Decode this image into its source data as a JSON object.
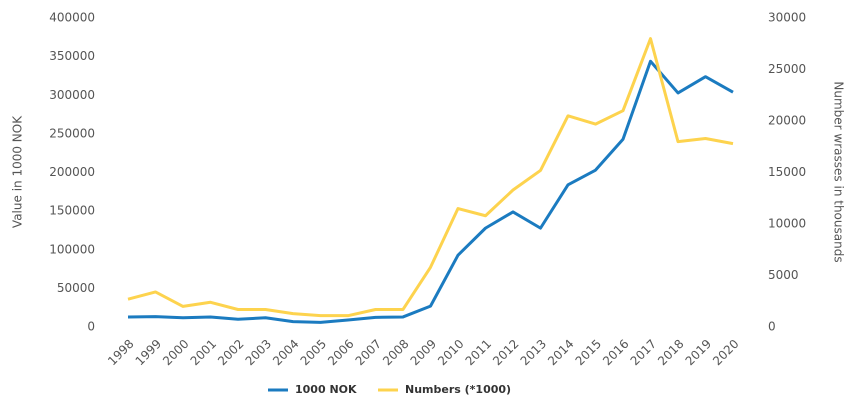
{
  "chart_data": {
    "type": "line",
    "x": [
      "1998",
      "1999",
      "2000",
      "2001",
      "2002",
      "2003",
      "2004",
      "2005",
      "2006",
      "2007",
      "2008",
      "2009",
      "2010",
      "2011",
      "2012",
      "2013",
      "2014",
      "2015",
      "2016",
      "2017",
      "2018",
      "2019",
      "2020"
    ],
    "series": [
      {
        "name": "1000 NOK",
        "color": "#1b7bc0",
        "values": [
          13000,
          13500,
          12000,
          13000,
          10000,
          12000,
          7000,
          6000,
          9000,
          12500,
          13000,
          27000,
          93000,
          128000,
          149000,
          128000,
          184000,
          203000,
          243000,
          344000,
          303000,
          324000,
          304000
        ]
      },
      {
        "name": "Numbers (*1000)",
        "color": "#fdd34e",
        "axis": "y2",
        "values": [
          2700,
          3400,
          2000,
          2400,
          1700,
          1700,
          1300,
          1100,
          1100,
          1700,
          1700,
          5800,
          11500,
          10800,
          13300,
          15200,
          20500,
          19700,
          21000,
          28000,
          18000,
          18300,
          17800
        ]
      }
    ],
    "ylabel": "Value in 1000 NOK",
    "y2label": "Number wrasses in thousands",
    "ylim": [
      0,
      400000
    ],
    "yticks": [
      0,
      50000,
      100000,
      150000,
      200000,
      250000,
      300000,
      350000,
      400000
    ],
    "y2lim": [
      0,
      30000
    ],
    "y2ticks": [
      0,
      5000,
      10000,
      15000,
      20000,
      25000,
      30000
    ],
    "legend": "bottom",
    "grid": false
  }
}
